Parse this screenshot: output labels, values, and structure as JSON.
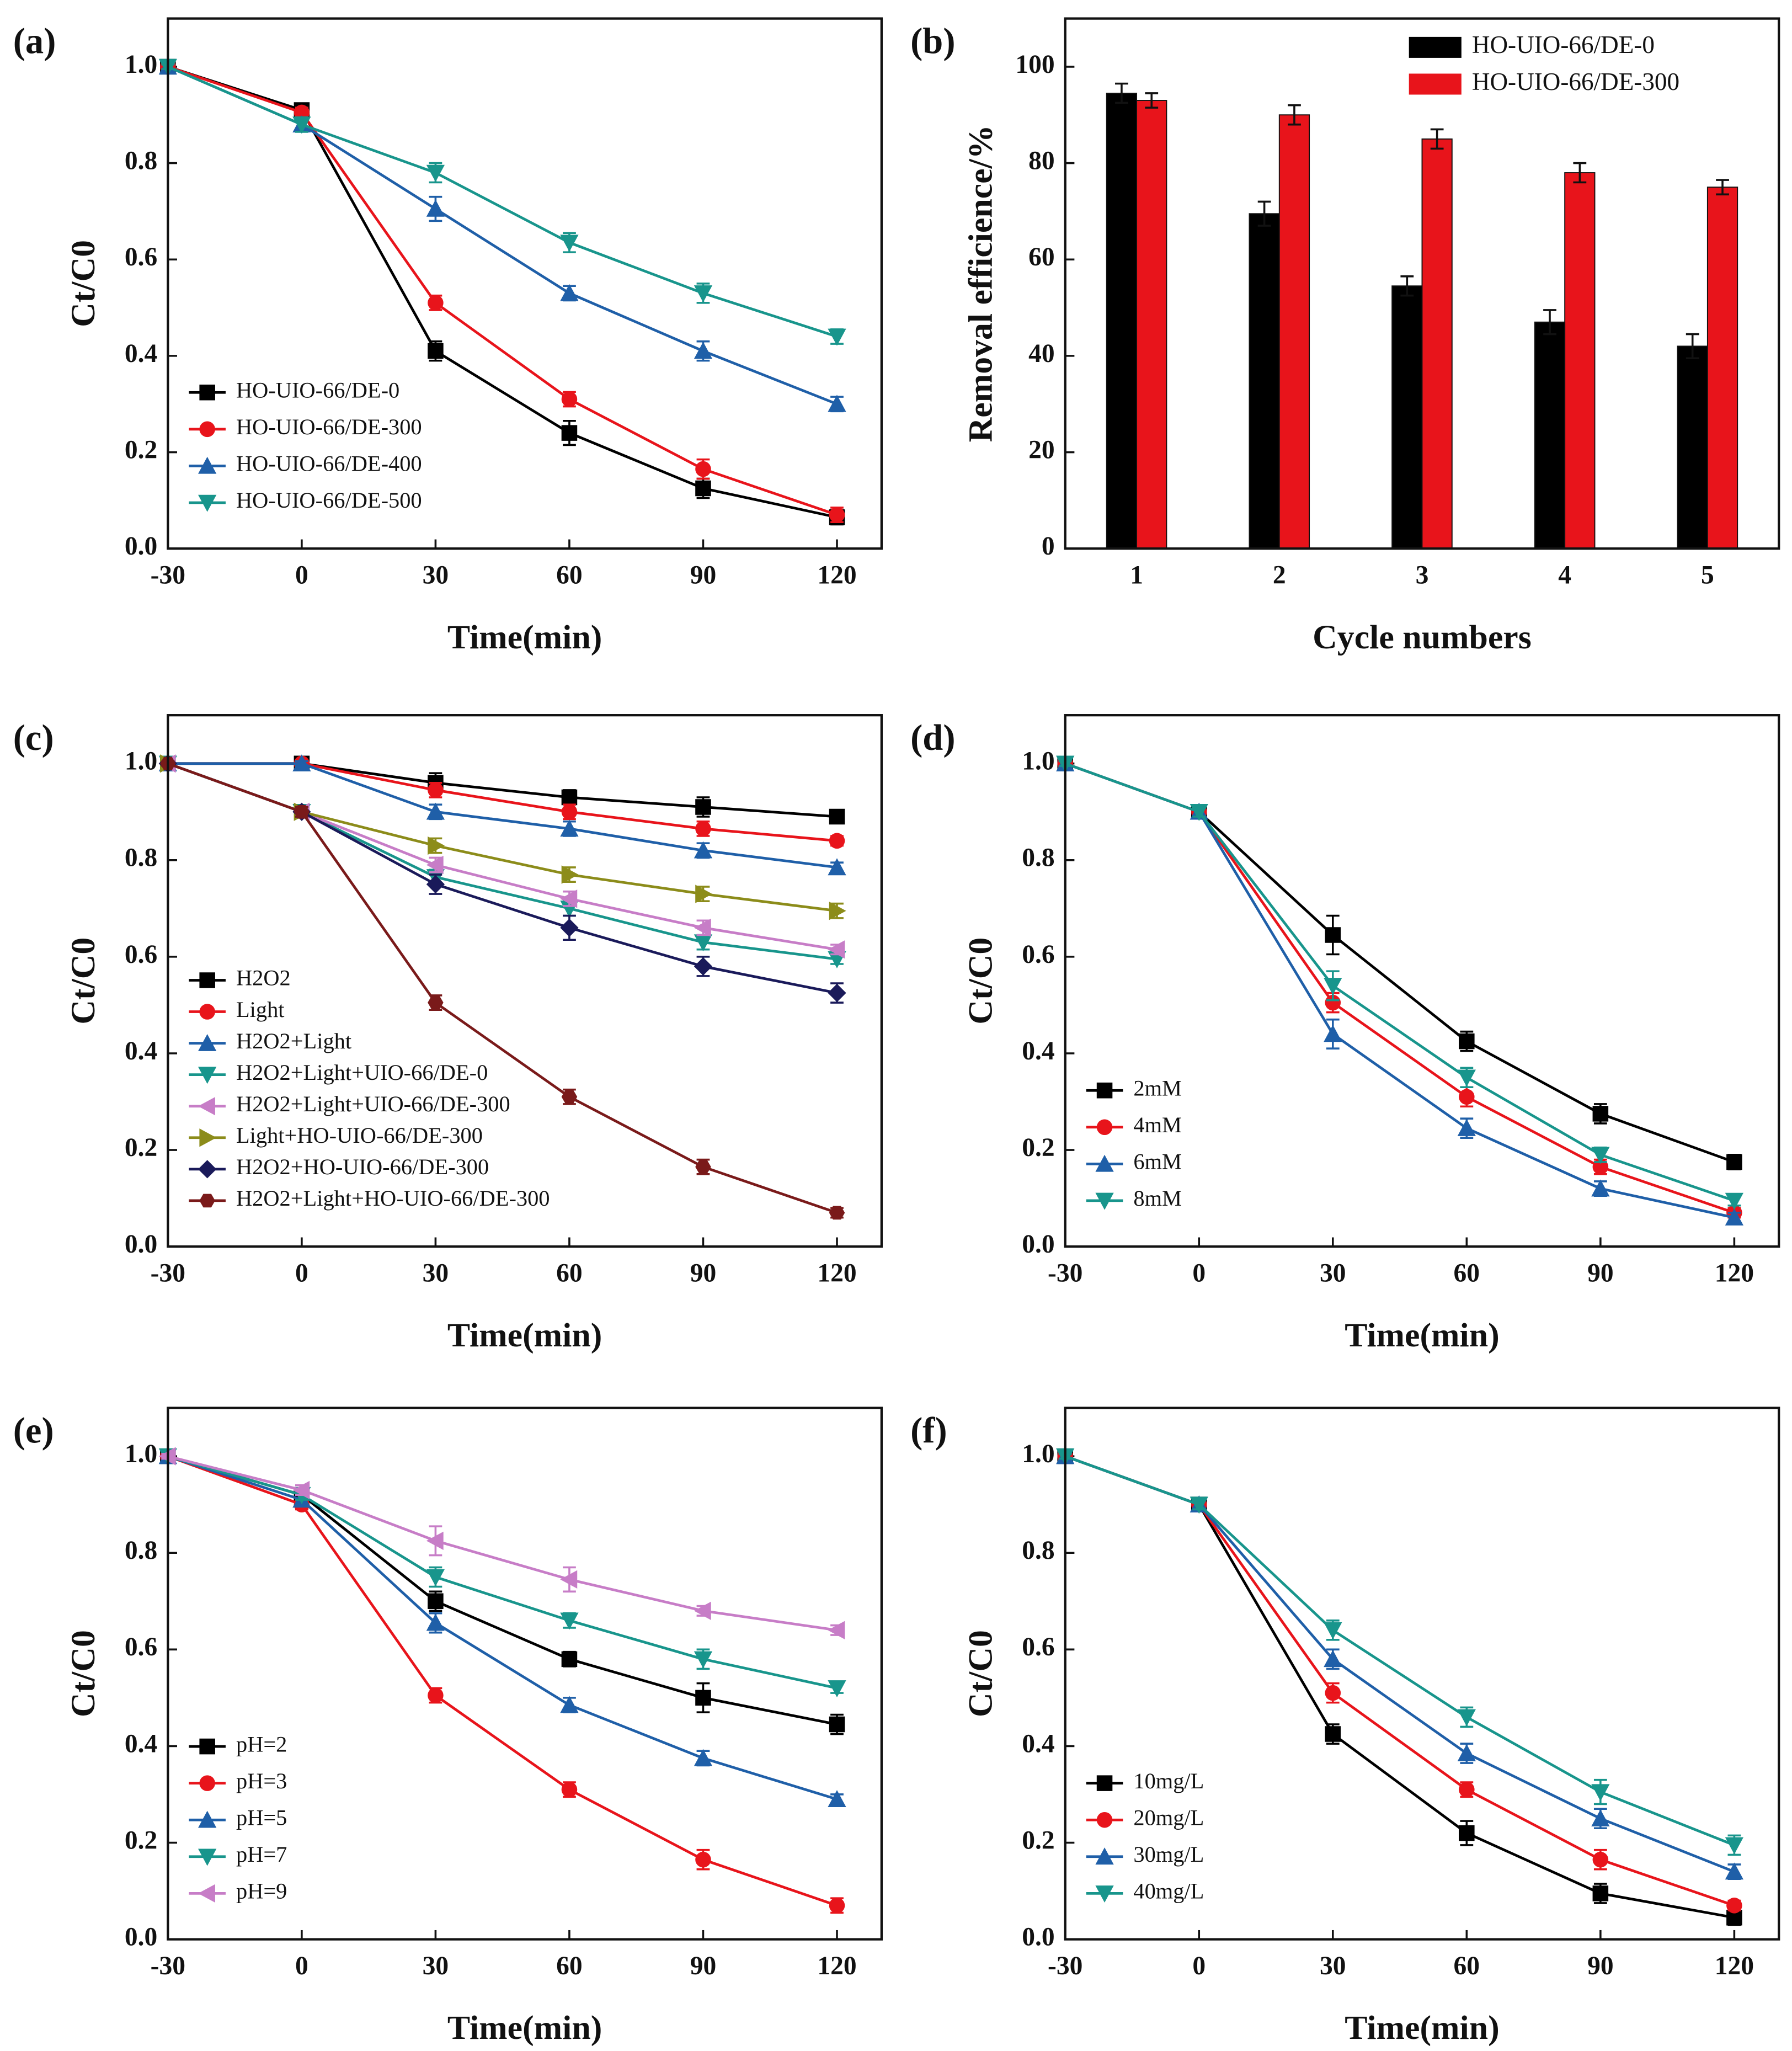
{
  "chart_data": [
    {
      "type": "line",
      "label": "(a)",
      "xlabel": "Time(min)",
      "ylabel": "Ct/C0",
      "legend": "lower left",
      "x": [
        -30,
        0,
        30,
        60,
        90,
        120
      ],
      "xlim": [
        -30,
        130
      ],
      "ylim": [
        0,
        1.1
      ],
      "xticks": [
        -30,
        0,
        30,
        60,
        90,
        120
      ],
      "yticks": [
        {
          "value": 0,
          "label": "0.0"
        },
        0.2,
        0.4,
        0.6,
        0.8,
        {
          "value": 1,
          "label": "1.0"
        }
      ],
      "series": [
        {
          "name": "HO-UIO-66/DE-0",
          "color": "#000000",
          "marker": "square",
          "values": [
            1.0,
            0.91,
            0.41,
            0.24,
            0.125,
            0.065
          ],
          "errors": [
            0.005,
            0.01,
            0.02,
            0.025,
            0.02,
            0.015
          ]
        },
        {
          "name": "HO-UIO-66/DE-300",
          "color": "#e8141b",
          "marker": "circle",
          "values": [
            1.0,
            0.905,
            0.51,
            0.31,
            0.165,
            0.07
          ],
          "errors": [
            0.005,
            0.01,
            0.015,
            0.015,
            0.02,
            0.015
          ]
        },
        {
          "name": "HO-UIO-66/DE-400",
          "color": "#1f5fa8",
          "marker": "up",
          "values": [
            1.0,
            0.88,
            0.705,
            0.53,
            0.41,
            0.3
          ],
          "errors": [
            0.005,
            0.015,
            0.025,
            0.015,
            0.02,
            0.015
          ]
        },
        {
          "name": "HO-UIO-66/DE-500",
          "color": "#18958c",
          "marker": "down",
          "values": [
            1.0,
            0.88,
            0.78,
            0.635,
            0.53,
            0.44
          ],
          "errors": [
            0.005,
            0.015,
            0.02,
            0.02,
            0.02,
            0.015
          ]
        }
      ]
    },
    {
      "type": "bar",
      "label": "(b)",
      "xlabel": "Cycle numbers",
      "ylabel": "Removal efficience/%",
      "legend": "upper right",
      "categories": [
        "1",
        "2",
        "3",
        "4",
        "5"
      ],
      "ylim": [
        0,
        110
      ],
      "yticks": [
        0,
        20,
        40,
        60,
        80,
        100
      ],
      "series": [
        {
          "name": "HO-UIO-66/DE-0",
          "color": "#000000",
          "values": [
            94.5,
            69.5,
            54.5,
            47,
            42
          ],
          "errors": [
            2,
            2.5,
            2,
            2.5,
            2.5
          ]
        },
        {
          "name": "HO-UIO-66/DE-300",
          "color": "#e8141b",
          "values": [
            93,
            90,
            85,
            78,
            75
          ],
          "errors": [
            1.5,
            2,
            2,
            2,
            1.5
          ]
        }
      ]
    },
    {
      "type": "line",
      "label": "(c)",
      "xlabel": "Time(min)",
      "ylabel": "Ct/C0",
      "legend": "lower left",
      "x": [
        -30,
        0,
        30,
        60,
        90,
        120
      ],
      "xlim": [
        -30,
        130
      ],
      "ylim": [
        0,
        1.1
      ],
      "xticks": [
        -30,
        0,
        30,
        60,
        90,
        120
      ],
      "yticks": [
        {
          "value": 0,
          "label": "0.0"
        },
        0.2,
        0.4,
        0.6,
        0.8,
        {
          "value": 1,
          "label": "1.0"
        }
      ],
      "series": [
        {
          "name": "H2O2",
          "color": "#000000",
          "marker": "square",
          "values": [
            1,
            1,
            0.96,
            0.93,
            0.91,
            0.89
          ],
          "errors": [
            0.005,
            0.005,
            0.02,
            0.015,
            0.02,
            0.01
          ]
        },
        {
          "name": "Light",
          "color": "#e8141b",
          "marker": "circle",
          "values": [
            1,
            1,
            0.945,
            0.9,
            0.865,
            0.84
          ],
          "errors": [
            0.005,
            0.005,
            0.015,
            0.015,
            0.015,
            0.01
          ]
        },
        {
          "name": "H2O2+Light",
          "color": "#1f5fa8",
          "marker": "up",
          "values": [
            1,
            1,
            0.9,
            0.865,
            0.82,
            0.785
          ],
          "errors": [
            0.005,
            0.005,
            0.015,
            0.015,
            0.015,
            0.01
          ]
        },
        {
          "name": "H2O2+Light+UIO-66/DE-0",
          "color": "#18958c",
          "marker": "down",
          "values": [
            1,
            0.9,
            0.765,
            0.7,
            0.63,
            0.595
          ],
          "errors": [
            0.005,
            0.01,
            0.015,
            0.015,
            0.015,
            0.01
          ]
        },
        {
          "name": "H2O2+Light+UIO-66/DE-300",
          "color": "#c77dc7",
          "marker": "left",
          "values": [
            1,
            0.9,
            0.79,
            0.72,
            0.66,
            0.615
          ],
          "errors": [
            0.005,
            0.01,
            0.015,
            0.015,
            0.015,
            0.01
          ]
        },
        {
          "name": "Light+HO-UIO-66/DE-300",
          "color": "#8c8c1a",
          "marker": "right",
          "values": [
            1,
            0.9,
            0.83,
            0.77,
            0.73,
            0.695
          ],
          "errors": [
            0.005,
            0.01,
            0.015,
            0.015,
            0.015,
            0.015
          ]
        },
        {
          "name": "H2O2+HO-UIO-66/DE-300",
          "color": "#1a1a5a",
          "marker": "diamond",
          "values": [
            1,
            0.9,
            0.75,
            0.66,
            0.58,
            0.525
          ],
          "errors": [
            0.005,
            0.01,
            0.02,
            0.025,
            0.02,
            0.02
          ]
        },
        {
          "name": "H2O2+Light+HO-UIO-66/DE-300",
          "color": "#7a1a1a",
          "marker": "hex",
          "values": [
            1,
            0.9,
            0.505,
            0.31,
            0.165,
            0.07
          ],
          "errors": [
            0.005,
            0.01,
            0.015,
            0.015,
            0.015,
            0.01
          ]
        }
      ]
    },
    {
      "type": "line",
      "label": "(d)",
      "xlabel": "Time(min)",
      "ylabel": "Ct/C0",
      "legend": "lower left",
      "x": [
        -30,
        0,
        30,
        60,
        90,
        120
      ],
      "xlim": [
        -30,
        130
      ],
      "ylim": [
        0,
        1.1
      ],
      "xticks": [
        -30,
        0,
        30,
        60,
        90,
        120
      ],
      "yticks": [
        {
          "value": 0,
          "label": "0.0"
        },
        0.2,
        0.4,
        0.6,
        0.8,
        {
          "value": 1,
          "label": "1.0"
        }
      ],
      "series": [
        {
          "name": "2mM",
          "color": "#000000",
          "marker": "square",
          "values": [
            1,
            0.9,
            0.645,
            0.425,
            0.275,
            0.175
          ],
          "errors": [
            0.005,
            0.01,
            0.04,
            0.02,
            0.02,
            0.015
          ]
        },
        {
          "name": "4mM",
          "color": "#e8141b",
          "marker": "circle",
          "values": [
            1,
            0.9,
            0.505,
            0.31,
            0.165,
            0.07
          ],
          "errors": [
            0.005,
            0.01,
            0.02,
            0.02,
            0.015,
            0.01
          ]
        },
        {
          "name": "6mM",
          "color": "#1f5fa8",
          "marker": "up",
          "values": [
            1,
            0.9,
            0.44,
            0.245,
            0.12,
            0.06
          ],
          "errors": [
            0.005,
            0.01,
            0.03,
            0.02,
            0.015,
            0.01
          ]
        },
        {
          "name": "8mM",
          "color": "#18958c",
          "marker": "down",
          "values": [
            1,
            0.9,
            0.54,
            0.35,
            0.19,
            0.095
          ],
          "errors": [
            0.005,
            0.01,
            0.03,
            0.02,
            0.015,
            0.01
          ]
        }
      ]
    },
    {
      "type": "line",
      "label": "(e)",
      "xlabel": "Time(min)",
      "ylabel": "Ct/C0",
      "legend": "lower left",
      "x": [
        -30,
        0,
        30,
        60,
        90,
        120
      ],
      "xlim": [
        -30,
        130
      ],
      "ylim": [
        0,
        1.1
      ],
      "xticks": [
        -30,
        0,
        30,
        60,
        90,
        120
      ],
      "yticks": [
        {
          "value": 0,
          "label": "0.0"
        },
        0.2,
        0.4,
        0.6,
        0.8,
        {
          "value": 1,
          "label": "1.0"
        }
      ],
      "series": [
        {
          "name": "pH=2",
          "color": "#000000",
          "marker": "square",
          "values": [
            1,
            0.92,
            0.7,
            0.58,
            0.5,
            0.445
          ],
          "errors": [
            0.005,
            0.01,
            0.02,
            0.015,
            0.03,
            0.02
          ]
        },
        {
          "name": "pH=3",
          "color": "#e8141b",
          "marker": "circle",
          "values": [
            1,
            0.9,
            0.505,
            0.31,
            0.165,
            0.07
          ],
          "errors": [
            0.005,
            0.01,
            0.015,
            0.015,
            0.02,
            0.015
          ]
        },
        {
          "name": "pH=5",
          "color": "#1f5fa8",
          "marker": "up",
          "values": [
            1,
            0.91,
            0.655,
            0.485,
            0.375,
            0.29
          ],
          "errors": [
            0.005,
            0.01,
            0.02,
            0.015,
            0.015,
            0.01
          ]
        },
        {
          "name": "pH=7",
          "color": "#18958c",
          "marker": "down",
          "values": [
            1,
            0.92,
            0.75,
            0.66,
            0.58,
            0.52
          ],
          "errors": [
            0.005,
            0.01,
            0.02,
            0.015,
            0.02,
            0.01
          ]
        },
        {
          "name": "pH=9",
          "color": "#c77dc7",
          "marker": "left",
          "values": [
            1,
            0.93,
            0.825,
            0.745,
            0.68,
            0.64
          ],
          "errors": [
            0.005,
            0.01,
            0.03,
            0.025,
            0.01,
            0.01
          ]
        }
      ]
    },
    {
      "type": "line",
      "label": "(f)",
      "xlabel": "Time(min)",
      "ylabel": "Ct/C0",
      "legend": "lower left",
      "x": [
        -30,
        0,
        30,
        60,
        90,
        120
      ],
      "xlim": [
        -30,
        130
      ],
      "ylim": [
        0,
        1.1
      ],
      "xticks": [
        -30,
        0,
        30,
        60,
        90,
        120
      ],
      "yticks": [
        {
          "value": 0,
          "label": "0.0"
        },
        0.2,
        0.4,
        0.6,
        0.8,
        {
          "value": 1,
          "label": "1.0"
        }
      ],
      "series": [
        {
          "name": "10mg/L",
          "color": "#000000",
          "marker": "square",
          "values": [
            1,
            0.9,
            0.425,
            0.22,
            0.095,
            0.045
          ],
          "errors": [
            0.005,
            0.01,
            0.02,
            0.025,
            0.02,
            0.015
          ]
        },
        {
          "name": "20mg/L",
          "color": "#e8141b",
          "marker": "circle",
          "values": [
            1,
            0.9,
            0.51,
            0.31,
            0.165,
            0.07
          ],
          "errors": [
            0.005,
            0.01,
            0.02,
            0.015,
            0.02,
            0.01
          ]
        },
        {
          "name": "30mg/L",
          "color": "#1f5fa8",
          "marker": "up",
          "values": [
            1,
            0.9,
            0.58,
            0.385,
            0.25,
            0.14
          ],
          "errors": [
            0.005,
            0.01,
            0.02,
            0.02,
            0.02,
            0.015
          ]
        },
        {
          "name": "40mg/L",
          "color": "#18958c",
          "marker": "down",
          "values": [
            1,
            0.9,
            0.64,
            0.46,
            0.305,
            0.195
          ],
          "errors": [
            0.005,
            0.01,
            0.02,
            0.02,
            0.025,
            0.02
          ]
        }
      ]
    }
  ]
}
